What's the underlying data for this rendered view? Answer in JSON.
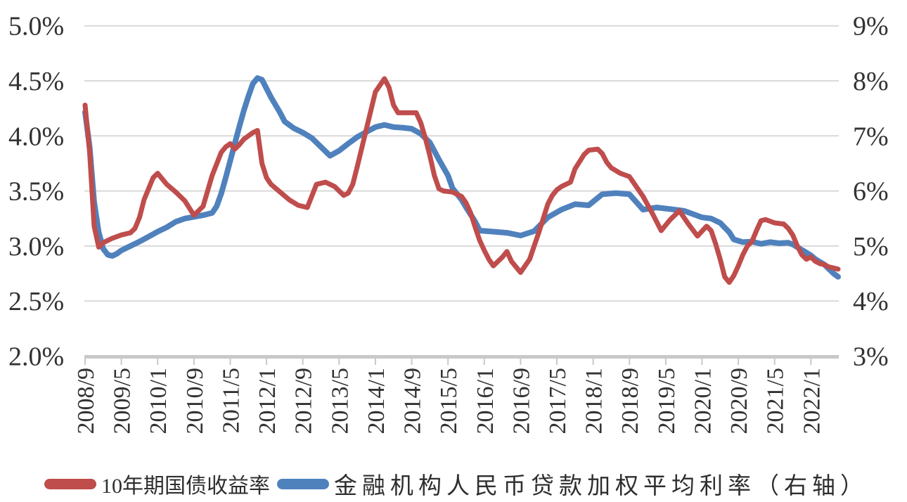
{
  "chart_data": {
    "type": "line",
    "title": "",
    "x_unit": "months_since_2008-09",
    "x_axis": {
      "tick_labels": [
        "2008/9",
        "2009/5",
        "2010/1",
        "2010/9",
        "2011/5",
        "2012/1",
        "2012/9",
        "2013/5",
        "2014/1",
        "2014/9",
        "2015/5",
        "2016/1",
        "2016/9",
        "2017/5",
        "2018/1",
        "2018/9",
        "2019/5",
        "2020/1",
        "2020/9",
        "2021/5",
        "2022/1"
      ],
      "tick_month_offsets": [
        0,
        8,
        16,
        24,
        32,
        40,
        48,
        56,
        64,
        72,
        80,
        88,
        96,
        104,
        112,
        120,
        128,
        136,
        144,
        152,
        160
      ],
      "label_rotation_deg": -90
    },
    "left_axis": {
      "tick_labels": [
        "5.0%",
        "4.5%",
        "4.0%",
        "3.5%",
        "3.0%",
        "2.5%",
        "2.0%"
      ],
      "tick_values": [
        5.0,
        4.5,
        4.0,
        3.5,
        3.0,
        2.5,
        2.0
      ],
      "min": 2.0,
      "max": 5.0
    },
    "right_axis": {
      "tick_labels": [
        "9%",
        "8%",
        "7%",
        "6%",
        "5%",
        "4%",
        "3%"
      ],
      "tick_values": [
        9,
        8,
        7,
        6,
        5,
        4,
        3
      ],
      "min": 3,
      "max": 9
    },
    "grid": "horizontal",
    "legend_position": "bottom",
    "colors": {
      "gridline": "#d9d9d9",
      "axis_line": "#c9c9c9",
      "text": "#323232",
      "series_red": "#bf4d4c",
      "series_blue": "#4f81bd"
    },
    "series": [
      {
        "name": "10年期国债收益率",
        "axis": "left",
        "color": "#bf4d4c",
        "stroke_width": 7,
        "points": [
          [
            0,
            4.28
          ],
          [
            1,
            3.85
          ],
          [
            2,
            3.18
          ],
          [
            3,
            2.99
          ],
          [
            4,
            3.03
          ],
          [
            6,
            3.07
          ],
          [
            8,
            3.1
          ],
          [
            10,
            3.12
          ],
          [
            11,
            3.16
          ],
          [
            12,
            3.26
          ],
          [
            13,
            3.42
          ],
          [
            14,
            3.52
          ],
          [
            15,
            3.62
          ],
          [
            16,
            3.66
          ],
          [
            18,
            3.56
          ],
          [
            20,
            3.49
          ],
          [
            22,
            3.41
          ],
          [
            24,
            3.28
          ],
          [
            26,
            3.36
          ],
          [
            28,
            3.64
          ],
          [
            30,
            3.85
          ],
          [
            31,
            3.9
          ],
          [
            32,
            3.93
          ],
          [
            33,
            3.88
          ],
          [
            34,
            3.92
          ],
          [
            35,
            3.97
          ],
          [
            37,
            4.03
          ],
          [
            38,
            4.05
          ],
          [
            39,
            3.75
          ],
          [
            40,
            3.62
          ],
          [
            41,
            3.56
          ],
          [
            43,
            3.49
          ],
          [
            45,
            3.42
          ],
          [
            47,
            3.37
          ],
          [
            49,
            3.35
          ],
          [
            51,
            3.56
          ],
          [
            53,
            3.58
          ],
          [
            55,
            3.54
          ],
          [
            57,
            3.46
          ],
          [
            58,
            3.48
          ],
          [
            59,
            3.56
          ],
          [
            60,
            3.72
          ],
          [
            62,
            4.06
          ],
          [
            64,
            4.4
          ],
          [
            66,
            4.52
          ],
          [
            67,
            4.44
          ],
          [
            68,
            4.28
          ],
          [
            69,
            4.21
          ],
          [
            71,
            4.21
          ],
          [
            73,
            4.21
          ],
          [
            74,
            4.12
          ],
          [
            75,
            3.98
          ],
          [
            76,
            3.82
          ],
          [
            77,
            3.64
          ],
          [
            78,
            3.52
          ],
          [
            79,
            3.5
          ],
          [
            81,
            3.49
          ],
          [
            83,
            3.45
          ],
          [
            84,
            3.39
          ],
          [
            85,
            3.3
          ],
          [
            86,
            3.17
          ],
          [
            87,
            3.05
          ],
          [
            88,
            2.96
          ],
          [
            89,
            2.88
          ],
          [
            90,
            2.82
          ],
          [
            92,
            2.9
          ],
          [
            93,
            2.95
          ],
          [
            94,
            2.86
          ],
          [
            96,
            2.76
          ],
          [
            98,
            2.88
          ],
          [
            99,
            3.0
          ],
          [
            100,
            3.12
          ],
          [
            101,
            3.25
          ],
          [
            102,
            3.38
          ],
          [
            103,
            3.46
          ],
          [
            104,
            3.51
          ],
          [
            105,
            3.54
          ],
          [
            107,
            3.58
          ],
          [
            108,
            3.7
          ],
          [
            110,
            3.83
          ],
          [
            111,
            3.87
          ],
          [
            113,
            3.88
          ],
          [
            114,
            3.84
          ],
          [
            115,
            3.76
          ],
          [
            116,
            3.71
          ],
          [
            118,
            3.66
          ],
          [
            120,
            3.63
          ],
          [
            121,
            3.57
          ],
          [
            123,
            3.45
          ],
          [
            125,
            3.3
          ],
          [
            127,
            3.14
          ],
          [
            129,
            3.24
          ],
          [
            131,
            3.32
          ],
          [
            133,
            3.2
          ],
          [
            135,
            3.09
          ],
          [
            137,
            3.18
          ],
          [
            138,
            3.14
          ],
          [
            139,
            3.02
          ],
          [
            140,
            2.88
          ],
          [
            141,
            2.72
          ],
          [
            142,
            2.67
          ],
          [
            143,
            2.73
          ],
          [
            144,
            2.82
          ],
          [
            145,
            2.92
          ],
          [
            146,
            3.0
          ],
          [
            147,
            3.04
          ],
          [
            148,
            3.14
          ],
          [
            149,
            3.23
          ],
          [
            150,
            3.24
          ],
          [
            152,
            3.21
          ],
          [
            154,
            3.2
          ],
          [
            155,
            3.16
          ],
          [
            156,
            3.1
          ],
          [
            157,
            3.0
          ],
          [
            158,
            2.92
          ],
          [
            159,
            2.88
          ],
          [
            160,
            2.9
          ],
          [
            161,
            2.86
          ],
          [
            162,
            2.84
          ],
          [
            163,
            2.83
          ],
          [
            164,
            2.81
          ],
          [
            165,
            2.8
          ],
          [
            166,
            2.79
          ]
        ]
      },
      {
        "name": "金融机构人民币贷款加权平均利率（右轴）",
        "axis": "right",
        "color": "#4f81bd",
        "stroke_width": 8,
        "points": [
          [
            0,
            7.43
          ],
          [
            1,
            6.8
          ],
          [
            2,
            5.8
          ],
          [
            3,
            5.25
          ],
          [
            4,
            4.95
          ],
          [
            5,
            4.84
          ],
          [
            6,
            4.82
          ],
          [
            7,
            4.86
          ],
          [
            8,
            4.92
          ],
          [
            10,
            5.0
          ],
          [
            12,
            5.08
          ],
          [
            14,
            5.17
          ],
          [
            16,
            5.26
          ],
          [
            18,
            5.34
          ],
          [
            20,
            5.44
          ],
          [
            22,
            5.5
          ],
          [
            24,
            5.53
          ],
          [
            26,
            5.56
          ],
          [
            28,
            5.6
          ],
          [
            29,
            5.72
          ],
          [
            30,
            5.95
          ],
          [
            31,
            6.24
          ],
          [
            32,
            6.55
          ],
          [
            33,
            6.86
          ],
          [
            34,
            7.17
          ],
          [
            35,
            7.46
          ],
          [
            36,
            7.72
          ],
          [
            37,
            7.95
          ],
          [
            38,
            8.05
          ],
          [
            39,
            8.02
          ],
          [
            40,
            7.86
          ],
          [
            41,
            7.7
          ],
          [
            42,
            7.56
          ],
          [
            43,
            7.42
          ],
          [
            44,
            7.26
          ],
          [
            46,
            7.14
          ],
          [
            48,
            7.06
          ],
          [
            50,
            6.96
          ],
          [
            52,
            6.8
          ],
          [
            54,
            6.64
          ],
          [
            56,
            6.73
          ],
          [
            58,
            6.86
          ],
          [
            60,
            6.98
          ],
          [
            62,
            7.07
          ],
          [
            64,
            7.16
          ],
          [
            66,
            7.2
          ],
          [
            68,
            7.16
          ],
          [
            70,
            7.15
          ],
          [
            72,
            7.13
          ],
          [
            74,
            7.04
          ],
          [
            76,
            6.88
          ],
          [
            78,
            6.57
          ],
          [
            80,
            6.28
          ],
          [
            81,
            6.05
          ],
          [
            83,
            5.84
          ],
          [
            84,
            5.7
          ],
          [
            86,
            5.44
          ],
          [
            87,
            5.28
          ],
          [
            90,
            5.26
          ],
          [
            93,
            5.24
          ],
          [
            96,
            5.19
          ],
          [
            99,
            5.27
          ],
          [
            102,
            5.52
          ],
          [
            105,
            5.66
          ],
          [
            108,
            5.76
          ],
          [
            111,
            5.74
          ],
          [
            114,
            5.94
          ],
          [
            117,
            5.96
          ],
          [
            120,
            5.94
          ],
          [
            123,
            5.66
          ],
          [
            126,
            5.7
          ],
          [
            129,
            5.67
          ],
          [
            132,
            5.64
          ],
          [
            134,
            5.58
          ],
          [
            136,
            5.52
          ],
          [
            138,
            5.5
          ],
          [
            140,
            5.42
          ],
          [
            142,
            5.25
          ],
          [
            143,
            5.12
          ],
          [
            145,
            5.07
          ],
          [
            147,
            5.08
          ],
          [
            149,
            5.04
          ],
          [
            151,
            5.07
          ],
          [
            153,
            5.05
          ],
          [
            155,
            5.06
          ],
          [
            156,
            5.03
          ],
          [
            158,
            4.93
          ],
          [
            160,
            4.83
          ],
          [
            161,
            4.76
          ],
          [
            163,
            4.66
          ],
          [
            164,
            4.58
          ],
          [
            165,
            4.5
          ],
          [
            166,
            4.44
          ]
        ]
      }
    ]
  }
}
